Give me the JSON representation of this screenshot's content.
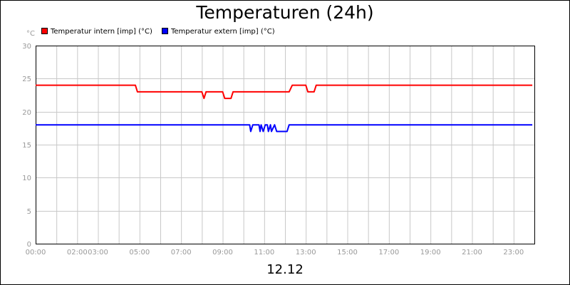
{
  "chart_data": {
    "type": "line",
    "title": "Temperaturen (24h)",
    "ylabel": "°C",
    "bottom_label": "12.12",
    "ylim": [
      0,
      30
    ],
    "yticks": [
      0,
      5,
      10,
      15,
      20,
      25,
      30
    ],
    "xlim": [
      0,
      24
    ],
    "xticks": [
      {
        "value": 0,
        "label": "00:00"
      },
      {
        "value": 2,
        "label": "02:00"
      },
      {
        "value": 3,
        "label": "03:00"
      },
      {
        "value": 5,
        "label": "05:00"
      },
      {
        "value": 7,
        "label": "07:00"
      },
      {
        "value": 9,
        "label": "09:00"
      },
      {
        "value": 11,
        "label": "11:00"
      },
      {
        "value": 13,
        "label": "13:00"
      },
      {
        "value": 15,
        "label": "15:00"
      },
      {
        "value": 17,
        "label": "17:00"
      },
      {
        "value": 19,
        "label": "19:00"
      },
      {
        "value": 21,
        "label": "21:00"
      },
      {
        "value": 23,
        "label": "23:00"
      }
    ],
    "grid": true,
    "legend_position": "top-left",
    "series": [
      {
        "name": "Temperatur intern [imp] (°C)",
        "color": "#ff0000",
        "points": [
          [
            0,
            24
          ],
          [
            4.8,
            24
          ],
          [
            4.9,
            23
          ],
          [
            8.0,
            23
          ],
          [
            8.1,
            22
          ],
          [
            8.2,
            23
          ],
          [
            9.0,
            23
          ],
          [
            9.1,
            22
          ],
          [
            9.4,
            22
          ],
          [
            9.5,
            23
          ],
          [
            12.2,
            23
          ],
          [
            12.35,
            24
          ],
          [
            13.0,
            24
          ],
          [
            13.1,
            23
          ],
          [
            13.4,
            23
          ],
          [
            13.5,
            24
          ],
          [
            23.9,
            24
          ]
        ]
      },
      {
        "name": "Temperatur extern [imp] (°C)",
        "color": "#0000ff",
        "points": [
          [
            0,
            18
          ],
          [
            10.3,
            18
          ],
          [
            10.35,
            17
          ],
          [
            10.45,
            18
          ],
          [
            10.75,
            18
          ],
          [
            10.8,
            17
          ],
          [
            10.85,
            18
          ],
          [
            10.95,
            17
          ],
          [
            11.05,
            18
          ],
          [
            11.15,
            18
          ],
          [
            11.2,
            17
          ],
          [
            11.3,
            18
          ],
          [
            11.35,
            17
          ],
          [
            11.5,
            18
          ],
          [
            11.6,
            17
          ],
          [
            12.1,
            17
          ],
          [
            12.2,
            18
          ],
          [
            23.9,
            18
          ]
        ]
      }
    ]
  }
}
